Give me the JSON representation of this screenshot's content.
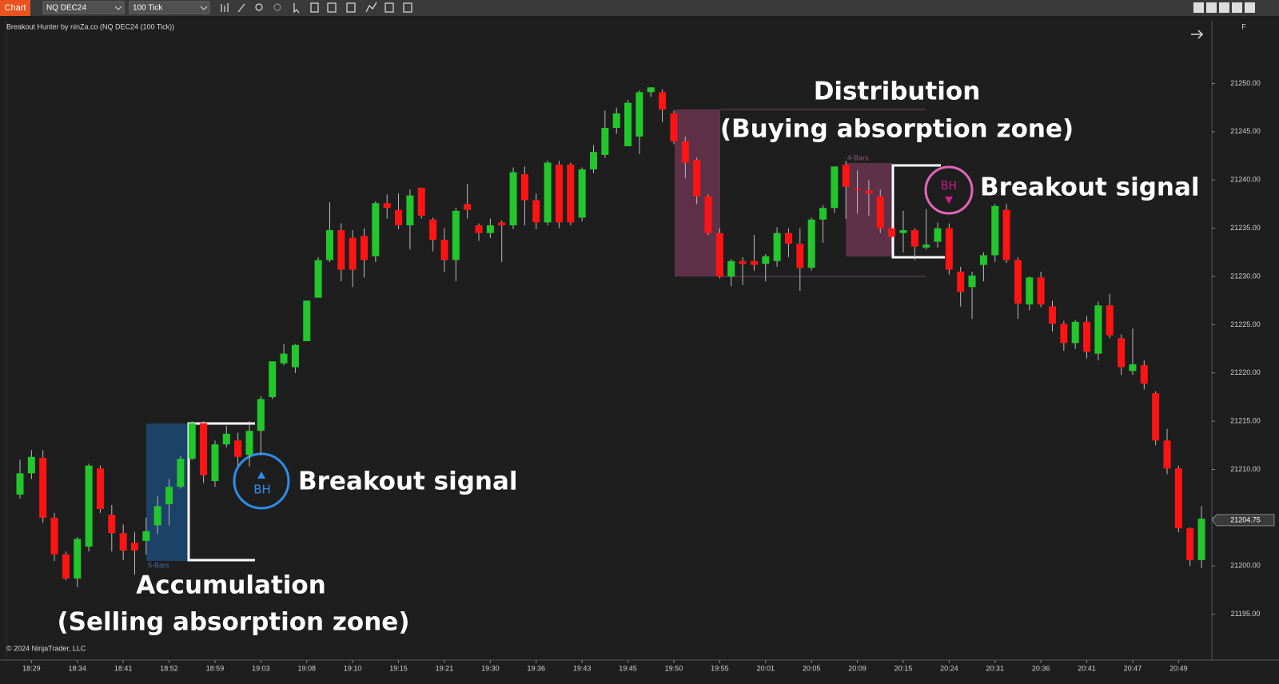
{
  "toolbar": {
    "tab": "Chart",
    "instrument": "NQ DEC24",
    "interval": "100 Tick"
  },
  "indicator_label": "Breakout Hunter by ninZa.co (NQ DEC24 (100 Tick))",
  "copyright": "© 2024 NinjaTrader, LLC",
  "panel_button": "F",
  "chart_data": {
    "type": "candlestick",
    "categories": [
      null,
      "18:29",
      null,
      null,
      null,
      "18:34",
      null,
      null,
      null,
      "18:41",
      null,
      null,
      null,
      "18:52",
      null,
      null,
      null,
      "18:59",
      null,
      null,
      null,
      "19:03",
      null,
      null,
      null,
      "19:08",
      null,
      null,
      null,
      "19:10",
      null,
      null,
      null,
      "19:15",
      null,
      null,
      null,
      "19:21",
      null,
      null,
      null,
      "19:30",
      null,
      null,
      null,
      "19:36",
      null,
      null,
      null,
      "19:43",
      null,
      null,
      null,
      "19:45",
      null,
      null,
      null,
      "19:50",
      null,
      null,
      null,
      "19:55",
      null,
      null,
      null,
      "20:01",
      null,
      null,
      null,
      "20:05",
      null,
      null,
      null,
      "20:09",
      null,
      null,
      null,
      "20:15",
      null,
      null,
      null,
      "20:24",
      null,
      null,
      null,
      "20:31",
      null,
      null,
      null,
      "20:36",
      null,
      null,
      null,
      "20:41",
      null,
      null,
      null,
      "20:47",
      null,
      null,
      null,
      "20:49",
      null,
      null
    ],
    "open": [
      21207.4,
      21209.6,
      21211.2,
      21205,
      21201.2,
      21198.7,
      21202,
      21210.1,
      21205.3,
      21203.4,
      21202.4,
      21202.6,
      21204.2,
      21206.4,
      21208.2,
      21211.1,
      21214.8,
      21208.8,
      21212.6,
      21213,
      21211.5,
      21214,
      21217.5,
      21221,
      21220.6,
      21223.3,
      21227.8,
      21231.7,
      21234.8,
      21234,
      21234.2,
      21232.1,
      21237.6,
      21236.9,
      21235.3,
      21239.2,
      21235.9,
      21233.8,
      21231.7,
      21237.5,
      21235.3,
      21234.5,
      21235.6,
      21235.3,
      21240.6,
      21237.9,
      21235.6,
      21241.6,
      21241.6,
      21236.1,
      21241.1,
      21242.6,
      21245.4,
      21243.5,
      21244.5,
      21249.1,
      21249.1,
      21246.9,
      21244,
      21242.1,
      21238.3,
      21234.5,
      21230,
      21231.6,
      21231.6,
      21231.3,
      21231.6,
      21234.5,
      21233.4,
      21230.9,
      21235.9,
      21237.1,
      21241.6,
      21239.1,
      21238.9,
      21238.3,
      21235,
      21234.5,
      21234.8,
      21233,
      21233.6,
      21235,
      21230.5,
      21228.9,
      21231.2,
      21232.2,
      21236.9,
      21231.7,
      21227.1,
      21229.9,
      21226.9,
      21225.1,
      21223.1,
      21225.3,
      21222,
      21227,
      21223.6,
      21220.2,
      21220.8,
      21217.9,
      21213,
      21210.1,
      21203.9,
      21200.6
    ],
    "high": [
      21211,
      21212,
      21212,
      21205.5,
      21201.5,
      21203,
      21210.6,
      21210.4,
      21206.3,
      21204.3,
      21203.5,
      21205,
      21207.2,
      21209,
      21211.4,
      21215,
      21215,
      21213,
      21214.5,
      21213.8,
      21215,
      21217.6,
      21221.2,
      21223,
      21223,
      21227.5,
      21232,
      21237.7,
      21235.5,
      21234.8,
      21235,
      21237.8,
      21238.5,
      21238.6,
      21239,
      21239.2,
      21236.1,
      21235,
      21237.1,
      21239.6,
      21235.5,
      21236,
      21235.8,
      21241.3,
      21241.4,
      21238.6,
      21242,
      21242,
      21241.8,
      21241.3,
      21243.6,
      21247.2,
      21247.5,
      21248.3,
      21249.3,
      21249.6,
      21249.4,
      21247.2,
      21244.5,
      21242.3,
      21238.5,
      21235,
      21231.8,
      21232,
      21234.3,
      21232.3,
      21235.1,
      21235,
      21235,
      21236.1,
      21237.4,
      21241.4,
      21242,
      21241,
      21240,
      21239,
      21235.5,
      21236.8,
      21235,
      21237,
      21235.6,
      21235.5,
      21231,
      21230.5,
      21232.5,
      21237.5,
      21237.5,
      21232,
      21230,
      21230.5,
      21227.5,
      21225.4,
      21225.5,
      21225.9,
      21227.4,
      21228.2,
      21224,
      21224.6,
      21221.3,
      21218.1,
      21214.2,
      21210.4,
      21204,
      21206.2
    ],
    "low": [
      21207,
      21209,
      21204.5,
      21200.5,
      21198.5,
      21197.8,
      21201.5,
      21205.5,
      21201.5,
      21200.6,
      21199.1,
      21201.2,
      21203.3,
      21204.2,
      21208,
      21211,
      21208.6,
      21208.2,
      21212.3,
      21210.4,
      21210.3,
      21211.5,
      21217.3,
      21220.8,
      21220,
      21223.3,
      21227.8,
      21231.5,
      21229.5,
      21228.9,
      21229.9,
      21231.5,
      21236,
      21234.9,
      21232.8,
      21236,
      21232.6,
      21230.5,
      21229.5,
      21236,
      21233.7,
      21234,
      21231.5,
      21234.9,
      21235.3,
      21234.9,
      21235.3,
      21235,
      21235.3,
      21235.7,
      21240.7,
      21242.3,
      21244.8,
      21243.5,
      21242.7,
      21248.6,
      21246,
      21243.7,
      21240.2,
      21237.5,
      21234.3,
      21229.8,
      21229,
      21229.1,
      21230.6,
      21229.5,
      21231,
      21232,
      21228.5,
      21230.6,
      21233.5,
      21236.6,
      21236,
      21236.5,
      21236.3,
      21234.5,
      21232.5,
      21232.5,
      21231.7,
      21232.8,
      21233,
      21230.2,
      21226.9,
      21225.6,
      21229.5,
      21231.5,
      21231.4,
      21225.6,
      21226.5,
      21226.8,
      21224.3,
      21222.3,
      21222.5,
      21221.5,
      21221.3,
      21223.6,
      21219.8,
      21219.8,
      21218.3,
      21212.5,
      21209.5,
      21203.5,
      21200,
      21199.8
    ],
    "close": [
      21209.6,
      21211.3,
      21205,
      21201.2,
      21198.7,
      21202.8,
      21210.4,
      21205.9,
      21203.4,
      21201.6,
      21201.6,
      21203.6,
      21206.2,
      21208.2,
      21211.1,
      21214.8,
      21209.4,
      21212.6,
      21213.7,
      21211.3,
      21214,
      21217.3,
      21221.2,
      21222,
      21222.9,
      21227.5,
      21231.7,
      21234.8,
      21230.7,
      21230.7,
      21231.7,
      21237.6,
      21237.1,
      21235.3,
      21238.4,
      21236.3,
      21233.8,
      21231.7,
      21236.8,
      21236.9,
      21234.5,
      21235.3,
      21235.3,
      21240.8,
      21237.9,
      21235.6,
      21241.8,
      21235.6,
      21235.6,
      21241.1,
      21242.9,
      21245.4,
      21246.9,
      21248,
      21249.1,
      21249.6,
      21247.3,
      21244,
      21241.8,
      21238.3,
      21234.5,
      21230,
      21231.6,
      21231.3,
      21231.2,
      21232.1,
      21234.5,
      21233.4,
      21230.9,
      21235.9,
      21237.1,
      21241.4,
      21239.3,
      21239,
      21238.6,
      21235,
      21234.1,
      21234.8,
      21233.1,
      21233.3,
      21235,
      21230.7,
      21228.4,
      21230.1,
      21232.2,
      21237.3,
      21231.7,
      21227.2,
      21229.9,
      21227.1,
      21225.1,
      21223.1,
      21225.3,
      21222.2,
      21227,
      21223.9,
      21220.6,
      21220.9,
      21218.9,
      21213,
      21210.1,
      21203.9,
      21200.6,
      21204.9
    ],
    "up_color": "#22c72c",
    "down_color": "#ff1414",
    "ylim": [
      21190.25,
      21256.5
    ],
    "yticks": [
      {
        "value": 21195,
        "label": "21195.00"
      },
      {
        "value": 21200,
        "label": "21200.00"
      },
      {
        "value": 21205,
        "label": "21205.00"
      },
      {
        "value": 21210,
        "label": "21210.00"
      },
      {
        "value": 21215,
        "label": "21215.00"
      },
      {
        "value": 21220,
        "label": "21220.00"
      },
      {
        "value": 21225,
        "label": "21225.00"
      },
      {
        "value": 21230,
        "label": "21230.00"
      },
      {
        "value": 21235,
        "label": "21235.00"
      },
      {
        "value": 21240,
        "label": "21240.00"
      },
      {
        "value": 21245,
        "label": "21245.00"
      },
      {
        "value": 21250,
        "label": "21250.00"
      }
    ],
    "last_price": 21204.75,
    "grid": false
  },
  "annotations": {
    "distribution": "Distribution",
    "distribution_sub": "(Buying absorption zone)",
    "accumulation": "Accumulation",
    "accumulation_sub": "(Selling absorption zone)",
    "breakout_long": "Breakout signal",
    "breakout_short": "Breakout signal",
    "signal_long": "BH",
    "signal_short": "BH",
    "bars_long": "5-Bars",
    "bars_short": "4-Bars"
  }
}
